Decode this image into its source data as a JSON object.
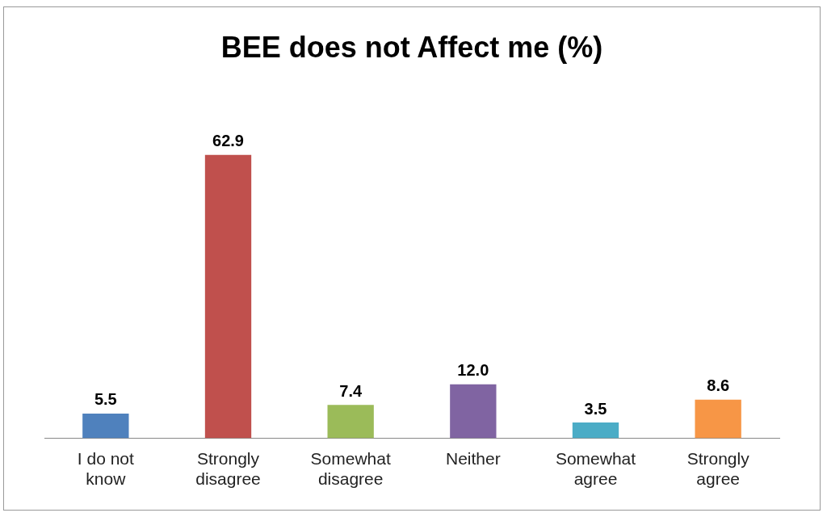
{
  "chart_data": {
    "type": "bar",
    "title": "BEE does not Affect me (%)",
    "categories": [
      "I do not know",
      "Strongly disagree",
      "Somewhat disagree",
      "Neither",
      "Somewhat agree",
      "Strongly agree"
    ],
    "values": [
      5.5,
      62.9,
      7.4,
      12.0,
      3.5,
      8.6
    ],
    "colors": [
      "#4f81bd",
      "#c0504d",
      "#9bbb59",
      "#8064a2",
      "#4bacc6",
      "#f79646"
    ],
    "value_labels": [
      "5.5",
      "62.9",
      "7.4",
      "12.0",
      "3.5",
      "8.6"
    ]
  }
}
